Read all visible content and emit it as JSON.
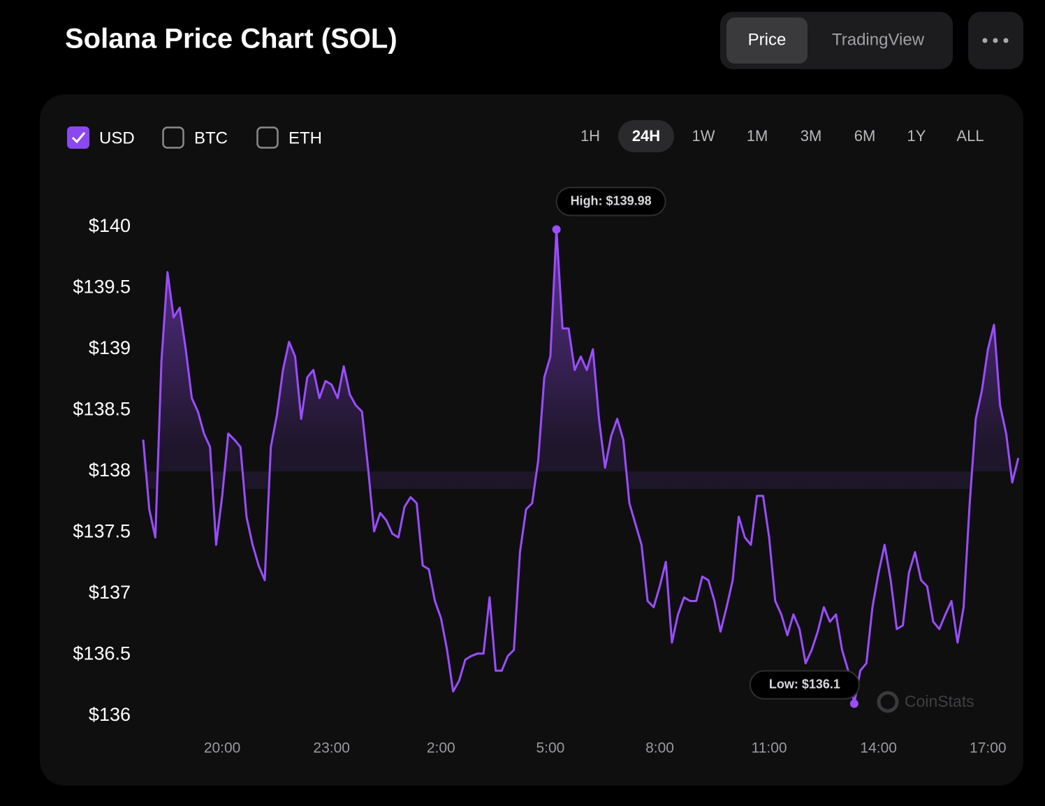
{
  "header": {
    "title": "Solana Price Chart (SOL)",
    "tabs": [
      {
        "label": "Price",
        "active": true
      },
      {
        "label": "TradingView",
        "active": false
      }
    ]
  },
  "currencies": [
    {
      "label": "USD",
      "checked": true
    },
    {
      "label": "BTC",
      "checked": false
    },
    {
      "label": "ETH",
      "checked": false
    }
  ],
  "ranges": [
    {
      "label": "1H",
      "active": false
    },
    {
      "label": "24H",
      "active": true
    },
    {
      "label": "1W",
      "active": false
    },
    {
      "label": "1M",
      "active": false
    },
    {
      "label": "3M",
      "active": false
    },
    {
      "label": "6M",
      "active": false
    },
    {
      "label": "1Y",
      "active": false
    },
    {
      "label": "ALL",
      "active": false
    }
  ],
  "watermark": "CoinStats",
  "chart_data": {
    "type": "line",
    "color": "#9b4dff",
    "area": true,
    "annotations": {
      "high": "High: $139.98",
      "low": "Low: $136.1"
    },
    "categories": [
      null,
      null,
      null,
      null,
      null,
      null,
      null,
      null,
      null,
      null,
      null,
      null,
      null,
      "20:00",
      null,
      null,
      null,
      null,
      null,
      null,
      null,
      null,
      null,
      null,
      null,
      null,
      null,
      null,
      null,
      null,
      null,
      "23:00",
      null,
      null,
      null,
      null,
      null,
      null,
      null,
      null,
      null,
      null,
      null,
      null,
      null,
      null,
      null,
      null,
      null,
      "2:00",
      null,
      null,
      null,
      null,
      null,
      null,
      null,
      null,
      null,
      null,
      null,
      null,
      null,
      null,
      null,
      null,
      null,
      "5:00",
      null,
      null,
      null,
      null,
      null,
      null,
      null,
      null,
      null,
      null,
      null,
      null,
      null,
      null,
      null,
      null,
      null,
      "8:00",
      null,
      null,
      null,
      null,
      null,
      null,
      null,
      null,
      null,
      null,
      null,
      null,
      null,
      null,
      null,
      null,
      null,
      "11:00",
      null,
      null,
      null,
      null,
      null,
      null,
      null,
      null,
      null,
      null,
      null,
      null,
      null,
      null,
      null,
      null,
      null,
      "14:00",
      null,
      null,
      null,
      null,
      null,
      null,
      null,
      null,
      null,
      null,
      null,
      null,
      null,
      null,
      null,
      null,
      null,
      "17:00",
      null,
      null,
      null,
      null,
      null
    ],
    "values": [
      138.26,
      137.69,
      137.46,
      138.9,
      139.63,
      139.26,
      139.34,
      139.0,
      138.6,
      138.49,
      138.31,
      138.2,
      137.4,
      137.8,
      138.31,
      138.26,
      138.2,
      137.63,
      137.4,
      137.23,
      137.11,
      138.2,
      138.46,
      138.83,
      139.06,
      138.94,
      138.43,
      138.77,
      138.83,
      138.6,
      138.74,
      138.71,
      138.6,
      138.86,
      138.63,
      138.54,
      138.49,
      138.03,
      137.51,
      137.66,
      137.6,
      137.49,
      137.46,
      137.71,
      137.79,
      137.74,
      137.23,
      137.2,
      136.94,
      136.8,
      136.54,
      136.2,
      136.29,
      136.46,
      136.49,
      136.51,
      136.51,
      136.97,
      136.37,
      136.37,
      136.49,
      136.54,
      137.34,
      137.69,
      137.74,
      138.09,
      138.77,
      138.94,
      139.98,
      139.17,
      139.17,
      138.83,
      138.94,
      138.83,
      139.0,
      138.43,
      138.03,
      138.29,
      138.43,
      138.26,
      137.74,
      137.57,
      137.4,
      136.94,
      136.89,
      137.06,
      137.26,
      136.6,
      136.83,
      136.97,
      136.94,
      136.94,
      137.14,
      137.11,
      136.94,
      136.69,
      136.89,
      137.11,
      137.63,
      137.46,
      137.4,
      137.8,
      137.8,
      137.46,
      136.94,
      136.83,
      136.66,
      136.83,
      136.71,
      136.43,
      136.54,
      136.69,
      136.89,
      136.77,
      136.83,
      136.54,
      136.37,
      136.1,
      136.37,
      136.43,
      136.89,
      137.17,
      137.4,
      137.11,
      136.71,
      136.74,
      137.17,
      137.34,
      137.11,
      137.06,
      136.77,
      136.71,
      136.83,
      136.94,
      136.6,
      136.89,
      137.74,
      138.43,
      138.66,
      139.0,
      139.2,
      138.54,
      138.31,
      137.91,
      138.11
    ],
    "ylim": [
      136,
      140
    ],
    "yticks": [
      {
        "value": 136,
        "label": "$136"
      },
      {
        "value": 136.5,
        "label": "$136.5"
      },
      {
        "value": 137,
        "label": "$137"
      },
      {
        "value": 137.5,
        "label": "$137.5"
      },
      {
        "value": 138,
        "label": "$138"
      },
      {
        "value": 138.5,
        "label": "$138.5"
      },
      {
        "value": 139,
        "label": "$139"
      },
      {
        "value": 139.5,
        "label": "$139.5"
      },
      {
        "value": 140,
        "label": "$140"
      }
    ]
  }
}
